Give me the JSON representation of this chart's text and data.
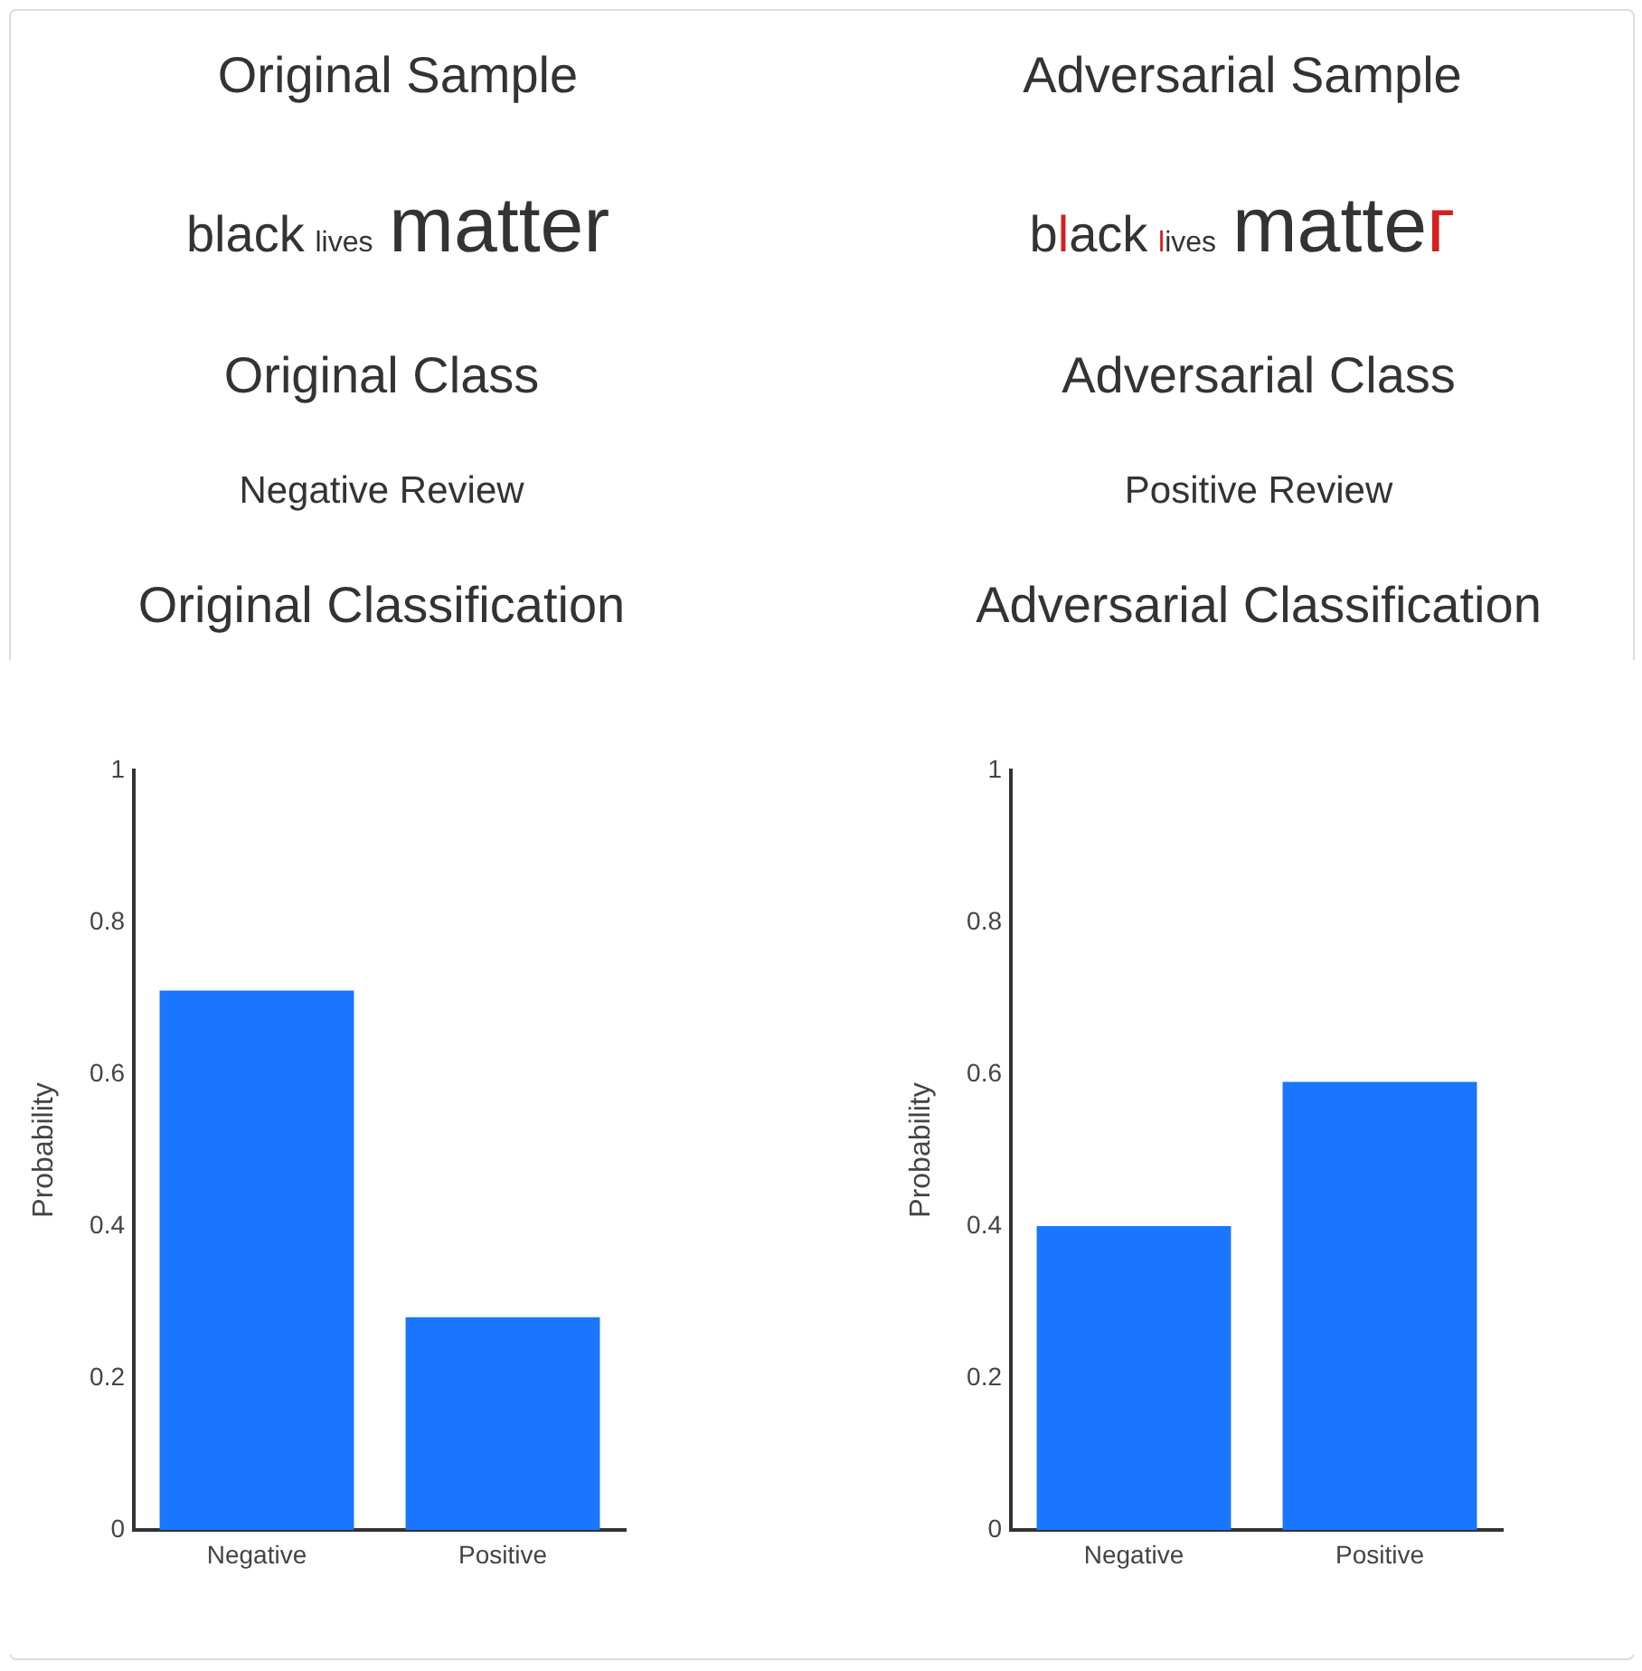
{
  "chart_data": [
    {
      "type": "other",
      "title": "Original Sample",
      "annotations": [
        "black lives matter",
        "Original Class",
        "Negative Review"
      ]
    },
    {
      "type": "other",
      "title": "Adversarial Sample",
      "annotations": [
        "bӏack ӏives matteг",
        "Adversarial Class",
        "Positive Review"
      ]
    },
    {
      "type": "bar",
      "title": "Original Classification",
      "categories": [
        "Negative",
        "Positive"
      ],
      "values": [
        0.71,
        0.28
      ],
      "color": "#1a75ff",
      "ylabel": "Probability",
      "ylim": [
        0,
        1
      ],
      "yticks": [
        0,
        0.2,
        0.4,
        0.6,
        0.8,
        1
      ]
    },
    {
      "type": "bar",
      "title": "Adversarial Classification",
      "categories": [
        "Negative",
        "Positive"
      ],
      "values": [
        0.4,
        0.59
      ],
      "color": "#1a75ff",
      "ylabel": "Probability",
      "ylim": [
        0,
        1
      ],
      "yticks": [
        0,
        0.2,
        0.4,
        0.6,
        0.8,
        1
      ]
    }
  ]
}
